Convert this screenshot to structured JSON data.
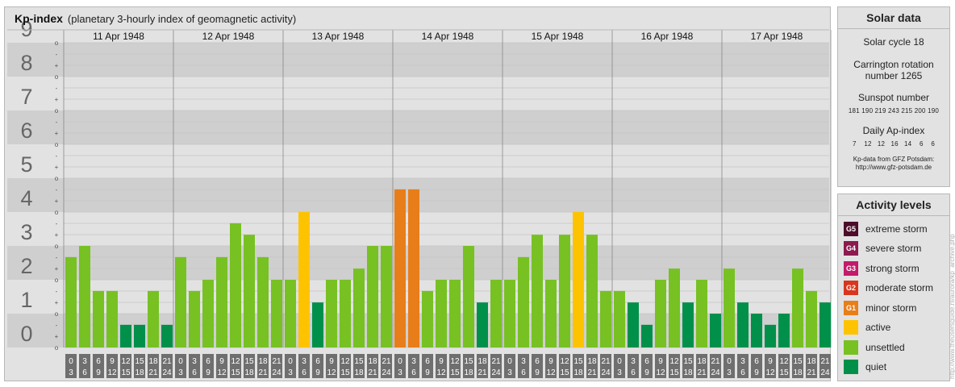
{
  "header": {
    "title": "Kp-index",
    "subtitle": "(planetary 3-hourly index of geomagnetic activity)"
  },
  "chart_data": {
    "type": "bar",
    "days": [
      "11 Apr 1948",
      "12 Apr 1948",
      "13 Apr 1948",
      "14 Apr 1948",
      "15 Apr 1948",
      "16 Apr 1948",
      "17 Apr 1948"
    ],
    "interval_labels_top": [
      "0",
      "3",
      "6",
      "9",
      "12",
      "15",
      "18",
      "21"
    ],
    "interval_labels_bottom": [
      "3",
      "6",
      "9",
      "12",
      "15",
      "18",
      "21",
      "24"
    ],
    "y_ticks": [
      "0",
      "1",
      "2",
      "3",
      "4",
      "5",
      "6",
      "7",
      "8",
      "9"
    ],
    "y_minor_marks": [
      "+",
      "o",
      "-"
    ],
    "ylim": [
      0,
      9
    ],
    "values": [
      2.67,
      3.0,
      1.67,
      1.67,
      0.67,
      0.67,
      1.67,
      0.67,
      2.67,
      1.67,
      2.0,
      2.67,
      3.67,
      3.33,
      2.67,
      2.0,
      2.0,
      4.0,
      1.33,
      2.0,
      2.0,
      2.33,
      3.0,
      3.0,
      4.67,
      4.67,
      1.67,
      2.0,
      2.0,
      3.0,
      1.33,
      2.0,
      2.0,
      2.67,
      3.33,
      2.0,
      3.33,
      4.0,
      3.33,
      1.67,
      1.67,
      1.33,
      0.67,
      2.0,
      2.33,
      1.33,
      2.0,
      1.0,
      2.33,
      1.33,
      1.0,
      0.67,
      1.0,
      2.33,
      1.67,
      1.33
    ],
    "colors": {
      "quiet": "#00904a",
      "unsettled": "#77c123",
      "active": "#fec300",
      "minor_storm": "#e87e1a"
    },
    "background_band": "#cfcfcf",
    "background_light": "#e2e2e2"
  },
  "solar": {
    "title": "Solar data",
    "cycle": "Solar cycle 18",
    "carrington_line1": "Carrington rotation",
    "carrington_line2": "number 1265",
    "sunspot_label": "Sunspot number",
    "sunspot_values": "181 190 219 243 215 200 190",
    "ap_label": "Daily Ap-index",
    "ap_values": "7    12   12   16   14    6    6",
    "credit_line1": "Kp-data from GFZ Potsdam:",
    "credit_line2": "http://www.gfz-potsdam.de"
  },
  "activity": {
    "title": "Activity levels",
    "levels": [
      {
        "badge": "G5",
        "label": "extreme storm",
        "color": "#4e0b2a"
      },
      {
        "badge": "G4",
        "label": "severe storm",
        "color": "#8c1a4e"
      },
      {
        "badge": "G3",
        "label": "strong storm",
        "color": "#c21b6b"
      },
      {
        "badge": "G2",
        "label": "moderate storm",
        "color": "#d8361d"
      },
      {
        "badge": "G1",
        "label": "minor storm",
        "color": "#e87e1a"
      },
      {
        "badge": "",
        "label": "active",
        "color": "#fec300"
      },
      {
        "badge": "",
        "label": "unsettled",
        "color": "#77c123"
      },
      {
        "badge": "",
        "label": "quiet",
        "color": "#00904a"
      }
    ]
  },
  "watermark": "http://www.theusersguide.nl/aurora/kp_archive.php"
}
